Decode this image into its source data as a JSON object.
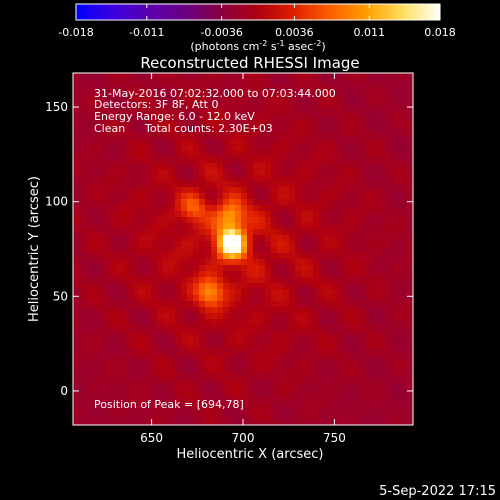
{
  "colors": {
    "background": "#000000",
    "text": "#ffffff",
    "colormap": [
      "#0000ff",
      "#3a00e0",
      "#5a00b0",
      "#6a0080",
      "#8a0040",
      "#b00010",
      "#e02000",
      "#ff6000",
      "#ffa000",
      "#ffe060",
      "#ffffff"
    ]
  },
  "colorbar": {
    "ticks": [
      "-0.018",
      "-0.011",
      "-0.0036",
      "0.0036",
      "0.011",
      "0.018"
    ],
    "tick_values": [
      -0.018,
      -0.011,
      -0.0036,
      0.0036,
      0.011,
      0.018
    ],
    "range": [
      -0.018,
      0.018
    ],
    "units_parts": [
      "(photons cm",
      "-2",
      " s",
      "-1",
      " asec",
      "-2",
      ")"
    ]
  },
  "title": "Reconstructed RHESSI Image",
  "annotations": {
    "time_range": "31-May-2016 07:02:32.000 to 07:03:44.000",
    "detectors": "Detectors: 3F 8F, Att 0",
    "energy": "Energy Range: 6.0 - 12.0 keV",
    "clean": "Clean",
    "total_counts": "Total counts: 2.30E+03",
    "peak": "Position of Peak = [694,78]"
  },
  "footer": {
    "date": "5-Sep-2022 17:15"
  },
  "chart_data": {
    "type": "heatmap",
    "title": "Reconstructed RHESSI Image",
    "xlabel": "Heliocentric X (arcsec)",
    "ylabel": "Heliocentric Y (arcsec)",
    "xlim": [
      607,
      793
    ],
    "ylim": [
      -18,
      168
    ],
    "x_ticks": [
      650,
      700,
      750
    ],
    "y_ticks": [
      0,
      50,
      100,
      150
    ],
    "x_tick_labels": [
      "650",
      "700",
      "750"
    ],
    "y_tick_labels": [
      "0",
      "50",
      "100",
      "150"
    ],
    "peak_position": [
      694,
      78
    ],
    "sources": [
      {
        "x": 694,
        "y": 78,
        "amplitude": 1.0
      },
      {
        "x": 693,
        "y": 92,
        "amplitude": 0.55
      },
      {
        "x": 682,
        "y": 52,
        "amplitude": 0.5
      },
      {
        "x": 673,
        "y": 97,
        "amplitude": 0.32
      }
    ],
    "colorbar_range": [
      -0.018,
      0.018
    ]
  }
}
